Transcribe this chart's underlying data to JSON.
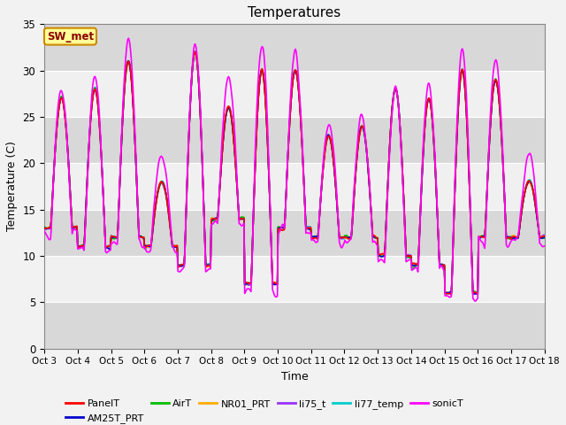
{
  "title": "Temperatures",
  "xlabel": "Time",
  "ylabel": "Temperature (C)",
  "ylim": [
    0,
    35
  ],
  "yticks": [
    0,
    5,
    10,
    15,
    20,
    25,
    30,
    35
  ],
  "num_days": 15,
  "start_day": 3,
  "points_per_day": 48,
  "series_order": [
    "li77_temp",
    "li75_t",
    "NR01_PRT",
    "AirT",
    "AM25T_PRT",
    "PanelT",
    "sonicT"
  ],
  "series": {
    "PanelT": {
      "color": "#ff0000",
      "lw": 1.2,
      "zorder": 5
    },
    "AM25T_PRT": {
      "color": "#0000cc",
      "lw": 1.2,
      "zorder": 4
    },
    "AirT": {
      "color": "#00bb00",
      "lw": 1.2,
      "zorder": 3
    },
    "NR01_PRT": {
      "color": "#ffaa00",
      "lw": 1.2,
      "zorder": 3
    },
    "li75_t": {
      "color": "#9933ff",
      "lw": 1.2,
      "zorder": 3
    },
    "li77_temp": {
      "color": "#00cccc",
      "lw": 1.2,
      "zorder": 3
    },
    "sonicT": {
      "color": "#ff00ff",
      "lw": 1.2,
      "zorder": 6
    }
  },
  "legend_order": [
    "PanelT",
    "AM25T_PRT",
    "AirT",
    "NR01_PRT",
    "li75_t",
    "li77_temp",
    "sonicT"
  ],
  "annotation_text": "SW_met",
  "bg_color": "#d8d8d8",
  "white_band_color": "#f0f0f0",
  "figsize": [
    6.4,
    4.8
  ],
  "dpi": 100,
  "daily_min": [
    13,
    11,
    12,
    11,
    9,
    14,
    7,
    13,
    12,
    12,
    10,
    9,
    6,
    12,
    12
  ],
  "daily_max": [
    27,
    28,
    31,
    18,
    32,
    26,
    30,
    30,
    23,
    24,
    28,
    27,
    30,
    29,
    18
  ],
  "sonic_extra_max": [
    1,
    1,
    2,
    3,
    1,
    3,
    3,
    2,
    1,
    1,
    0,
    1,
    2,
    2,
    3
  ]
}
